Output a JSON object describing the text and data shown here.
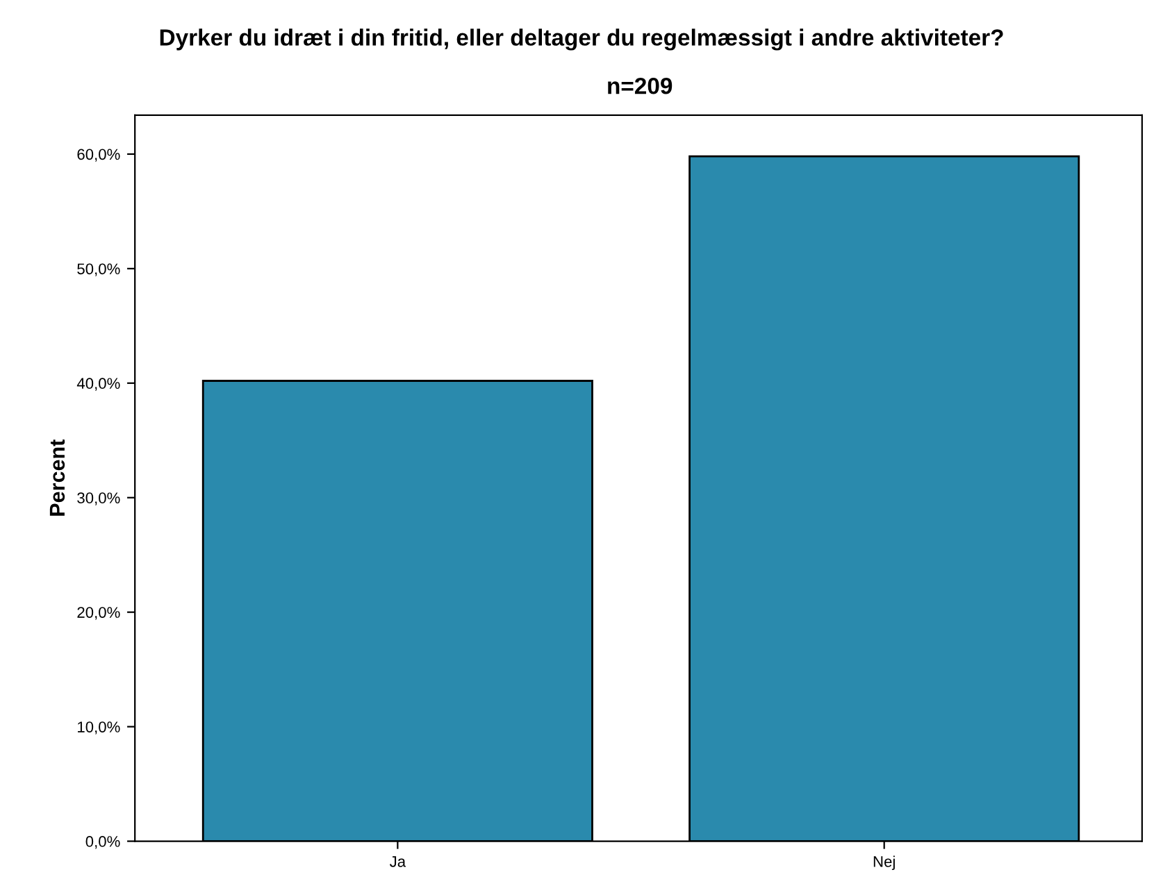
{
  "chart_data": {
    "type": "bar",
    "title": "Dyrker du idræt i din fritid, eller deltager du regelmæssigt i andre aktiviteter?",
    "subtitle": "n=209",
    "ylabel": "Percent",
    "categories": [
      "Ja",
      "Nej"
    ],
    "values": [
      40.2,
      59.8
    ],
    "color": "#2a8aad",
    "ylim": [
      0,
      63.4
    ],
    "yticks": [
      {
        "value": 0,
        "label": "0,0%"
      },
      {
        "value": 10,
        "label": "10,0%"
      },
      {
        "value": 20,
        "label": "20,0%"
      },
      {
        "value": 30,
        "label": "30,0%"
      },
      {
        "value": 40,
        "label": "40,0%"
      },
      {
        "value": 50,
        "label": "50,0%"
      },
      {
        "value": 60,
        "label": "60,0%"
      }
    ],
    "grid": false
  }
}
